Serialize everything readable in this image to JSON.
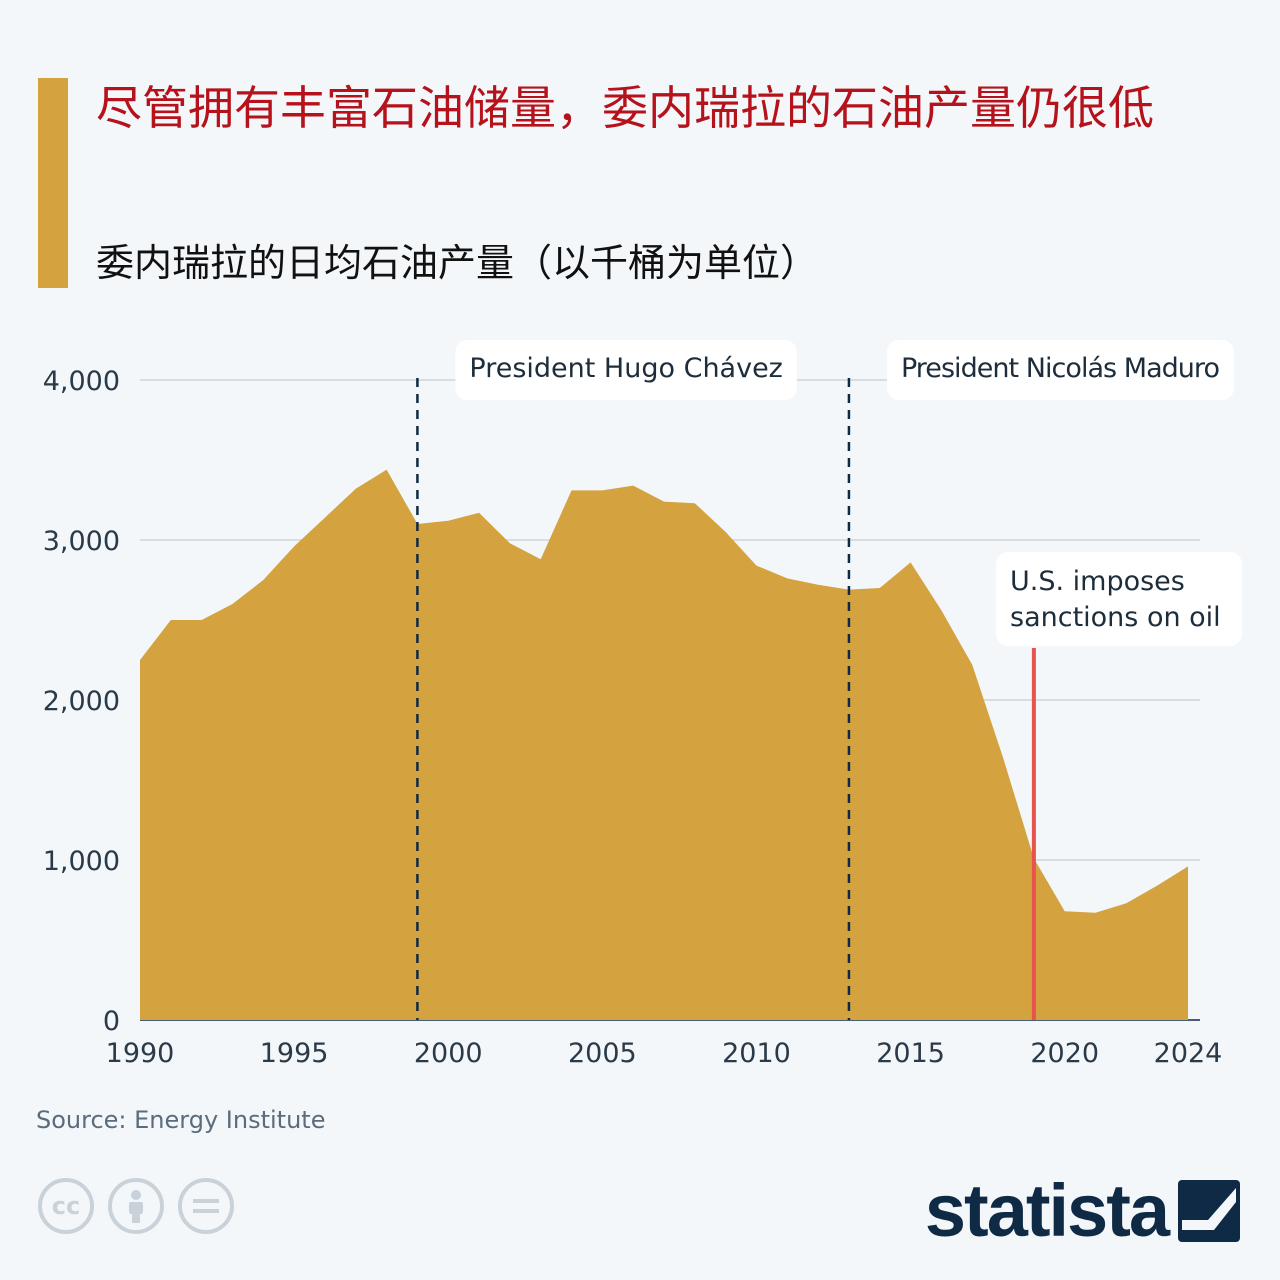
{
  "header": {
    "title": "尽管拥有丰富石油储量，委内瑞拉的石油产量仍很低",
    "subtitle": "委内瑞拉的日均石油产量（以千桶为单位）"
  },
  "colors": {
    "accent": "#d4a23e",
    "title": "#b5121b",
    "area": "#d4a23e",
    "sanction_line": "#e8534e",
    "dashed_line": "#0f2a44"
  },
  "footer": {
    "source": "Source: Energy Institute",
    "brand": "statista",
    "license_icons": [
      "cc-icon",
      "by-icon",
      "nd-icon"
    ]
  },
  "chart_data": {
    "type": "area",
    "title": "",
    "xlabel": "",
    "ylabel": "",
    "ylim": [
      0,
      4000
    ],
    "xlim": [
      1990,
      2024
    ],
    "yticks": [
      "0",
      "1,000",
      "2,000",
      "3,000",
      "4,000"
    ],
    "xticks": [
      "1990",
      "1995",
      "2000",
      "2005",
      "2010",
      "2015",
      "2020",
      "2024"
    ],
    "grid": true,
    "x": [
      1990,
      1991,
      1992,
      1993,
      1994,
      1995,
      1996,
      1997,
      1998,
      1999,
      2000,
      2001,
      2002,
      2003,
      2004,
      2005,
      2006,
      2007,
      2008,
      2009,
      2010,
      2011,
      2012,
      2013,
      2014,
      2015,
      2016,
      2017,
      2018,
      2019,
      2020,
      2021,
      2022,
      2023,
      2024
    ],
    "series": [
      {
        "values": [
          2250,
          2500,
          2500,
          2600,
          2750,
          2960,
          3140,
          3320,
          3440,
          3100,
          3120,
          3170,
          2980,
          2880,
          3310,
          3310,
          3340,
          3240,
          3230,
          3050,
          2840,
          2760,
          2720,
          2690,
          2700,
          2860,
          2560,
          2220,
          1640,
          1010,
          680,
          670,
          730,
          840,
          960
        ]
      }
    ],
    "annotations": [
      {
        "year": 1999,
        "style": "dashed",
        "label": "President Hugo Chávez"
      },
      {
        "year": 2013,
        "style": "dashed",
        "label": "President Nicolás Maduro"
      },
      {
        "year": 2019,
        "style": "solid",
        "label_lines": [
          "U.S. imposes",
          "sanctions on oil"
        ]
      }
    ]
  }
}
